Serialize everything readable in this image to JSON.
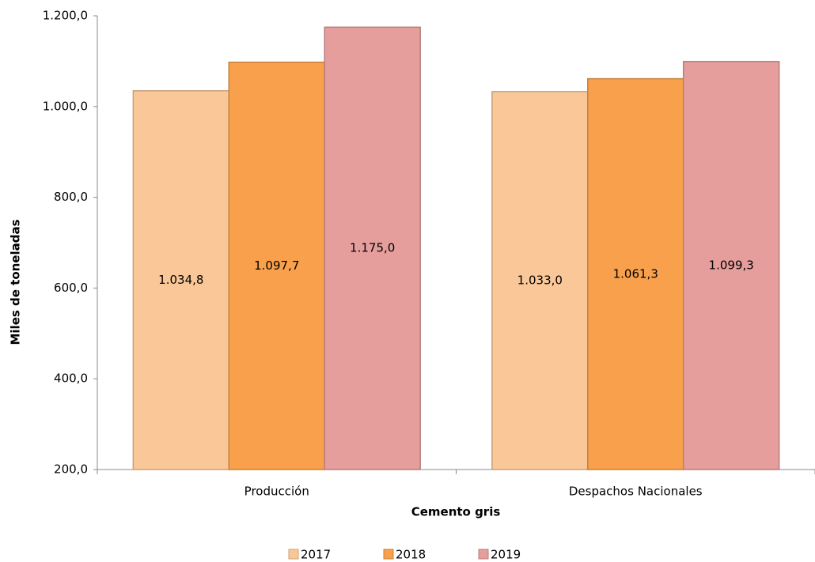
{
  "chart_data": {
    "type": "bar",
    "x_label": "Cemento gris",
    "y_label": "Miles de toneladas",
    "categories": [
      "Producción",
      "Despachos Nacionales"
    ],
    "series": [
      {
        "name": "2017",
        "color": "#fac898",
        "values": [
          1034.8,
          1033.0
        ],
        "value_labels": [
          "1.034,8",
          "1.033,0"
        ]
      },
      {
        "name": "2018",
        "color": "#f9a04c",
        "values": [
          1097.7,
          1061.3
        ],
        "value_labels": [
          "1.097,7",
          "1.061,3"
        ]
      },
      {
        "name": "2019",
        "color": "#e59e9c",
        "values": [
          1175.0,
          1099.3
        ],
        "value_labels": [
          "1.175,0",
          "1.099,3"
        ]
      }
    ],
    "ylim": [
      200,
      1200
    ],
    "yticks": [
      {
        "value": 200,
        "label": "200,0"
      },
      {
        "value": 400,
        "label": "400,0"
      },
      {
        "value": 600,
        "label": "600,0"
      },
      {
        "value": 800,
        "label": "800,0"
      },
      {
        "value": 1000,
        "label": "1.000,0"
      },
      {
        "value": 1200,
        "label": "1.200,0"
      }
    ],
    "grid": false,
    "legend": "bottom"
  }
}
